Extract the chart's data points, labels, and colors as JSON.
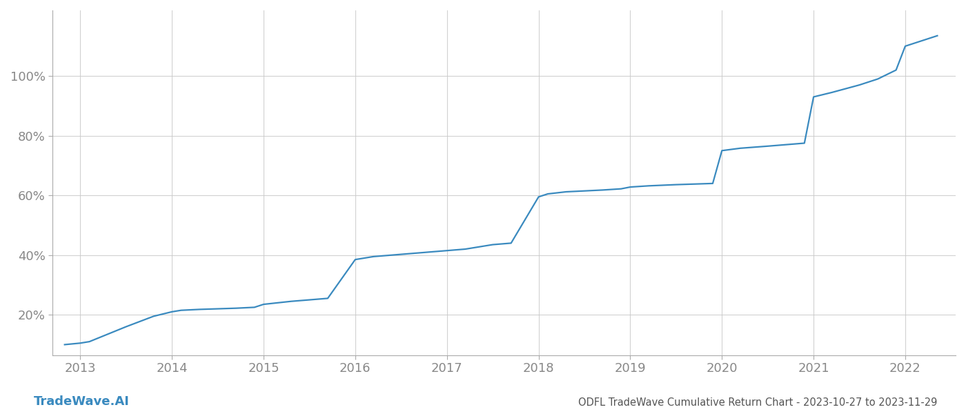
{
  "title": "ODFL TradeWave Cumulative Return Chart - 2023-10-27 to 2023-11-29",
  "watermark": "TradeWave.AI",
  "line_color": "#3a8abf",
  "background_color": "#ffffff",
  "grid_color": "#cccccc",
  "x_data": [
    2012.83,
    2013.0,
    2013.1,
    2013.5,
    2013.8,
    2014.0,
    2014.1,
    2014.3,
    2014.5,
    2014.7,
    2014.9,
    2015.0,
    2015.15,
    2015.3,
    2015.5,
    2015.7,
    2016.0,
    2016.2,
    2016.4,
    2016.6,
    2016.8,
    2017.0,
    2017.2,
    2017.5,
    2017.7,
    2018.0,
    2018.1,
    2018.3,
    2018.5,
    2018.7,
    2018.9,
    2019.0,
    2019.2,
    2019.5,
    2019.7,
    2019.9,
    2020.0,
    2020.2,
    2020.5,
    2020.7,
    2020.9,
    2021.0,
    2021.2,
    2021.5,
    2021.7,
    2021.9,
    2022.0,
    2022.2,
    2022.35
  ],
  "y_data": [
    0.1,
    0.105,
    0.11,
    0.16,
    0.195,
    0.21,
    0.215,
    0.218,
    0.22,
    0.222,
    0.225,
    0.235,
    0.24,
    0.245,
    0.25,
    0.255,
    0.385,
    0.395,
    0.4,
    0.405,
    0.41,
    0.415,
    0.42,
    0.435,
    0.44,
    0.595,
    0.605,
    0.612,
    0.615,
    0.618,
    0.622,
    0.628,
    0.632,
    0.636,
    0.638,
    0.64,
    0.75,
    0.758,
    0.765,
    0.77,
    0.775,
    0.93,
    0.945,
    0.97,
    0.99,
    1.02,
    1.1,
    1.12,
    1.135
  ],
  "ylim": [
    0.065,
    1.22
  ],
  "xlim": [
    2012.7,
    2022.55
  ],
  "yticks": [
    0.2,
    0.4,
    0.6,
    0.8,
    1.0
  ],
  "ytick_labels": [
    "20%",
    "40%",
    "60%",
    "80%",
    "100%"
  ],
  "xticks": [
    2013,
    2014,
    2015,
    2016,
    2017,
    2018,
    2019,
    2020,
    2021,
    2022
  ],
  "line_width": 1.6,
  "title_fontsize": 10.5,
  "tick_fontsize": 13,
  "watermark_fontsize": 13
}
